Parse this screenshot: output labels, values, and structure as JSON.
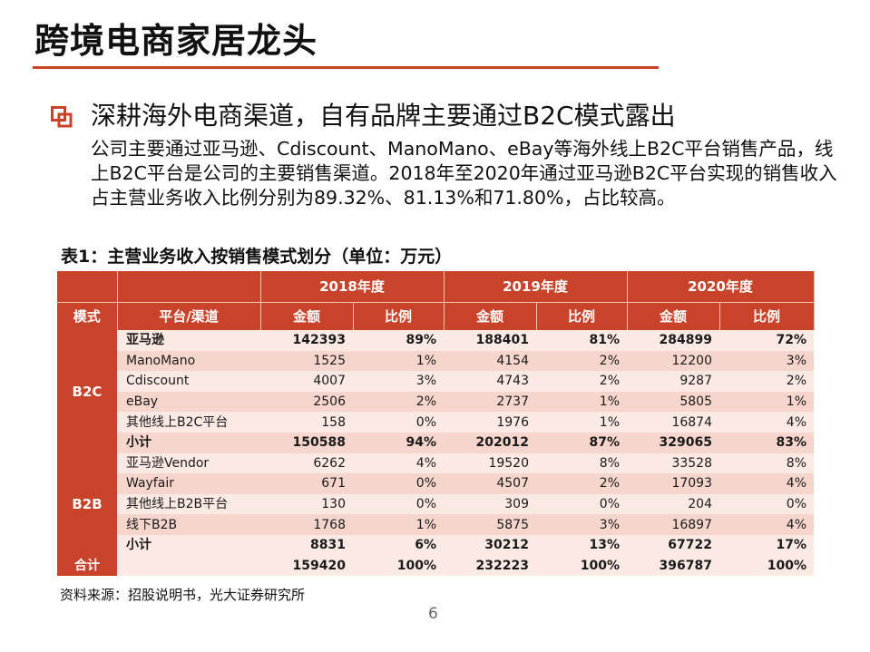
{
  "slide": {
    "title": "跨境电商家居龙头",
    "headline": "深耕海外电商渠道，自有品牌主要通过B2C模式露出",
    "paragraph": "公司主要通过亚马逊、Cdiscount、ManoMano、eBay等海外线上B2C平台销售产品，线上B2C平台是公司的主要销售渠道。2018年至2020年通过亚马逊B2C平台实现的销售收入占主营业务收入比例分别为89.32%、81.13%和71.80%，占比较高。",
    "accent_color": "#c8432a",
    "page_number": "6",
    "source": "资料来源：招股说明书，光大证券研究所"
  },
  "table": {
    "caption": "表1：主营业务收入按销售模式划分（单位：万元）",
    "years": [
      "2018年度",
      "2019年度",
      "2020年度"
    ],
    "col_mode": "模式",
    "col_channel": "平台/渠道",
    "col_amount": "金额",
    "col_ratio": "比例",
    "groups": [
      {
        "name": "B2C",
        "rows": [
          {
            "channel": "亚马逊",
            "bold": true,
            "v": [
              "142393",
              "89%",
              "188401",
              "81%",
              "284899",
              "72%"
            ]
          },
          {
            "channel": "ManoMano",
            "bold": false,
            "v": [
              "1525",
              "1%",
              "4154",
              "2%",
              "12200",
              "3%"
            ]
          },
          {
            "channel": "Cdiscount",
            "bold": false,
            "v": [
              "4007",
              "3%",
              "4743",
              "2%",
              "9287",
              "2%"
            ]
          },
          {
            "channel": "eBay",
            "bold": false,
            "v": [
              "2506",
              "2%",
              "2737",
              "1%",
              "5805",
              "1%"
            ]
          },
          {
            "channel": "其他线上B2C平台",
            "bold": false,
            "v": [
              "158",
              "0%",
              "1976",
              "1%",
              "16874",
              "4%"
            ]
          },
          {
            "channel": "小计",
            "bold": true,
            "v": [
              "150588",
              "94%",
              "202012",
              "87%",
              "329065",
              "83%"
            ]
          }
        ]
      },
      {
        "name": "B2B",
        "rows": [
          {
            "channel": "亚马逊Vendor",
            "bold": false,
            "v": [
              "6262",
              "4%",
              "19520",
              "8%",
              "33528",
              "8%"
            ]
          },
          {
            "channel": "Wayfair",
            "bold": false,
            "v": [
              "671",
              "0%",
              "4507",
              "2%",
              "17093",
              "4%"
            ]
          },
          {
            "channel": "其他线上B2B平台",
            "bold": false,
            "v": [
              "130",
              "0%",
              "309",
              "0%",
              "204",
              "0%"
            ]
          },
          {
            "channel": "线下B2B",
            "bold": false,
            "v": [
              "1768",
              "1%",
              "5875",
              "3%",
              "16897",
              "4%"
            ]
          },
          {
            "channel": "小计",
            "bold": true,
            "v": [
              "8831",
              "6%",
              "30212",
              "13%",
              "67722",
              "17%"
            ]
          }
        ]
      }
    ],
    "total": {
      "label": "合计",
      "v": [
        "159420",
        "100%",
        "232223",
        "100%",
        "396787",
        "100%"
      ]
    }
  }
}
